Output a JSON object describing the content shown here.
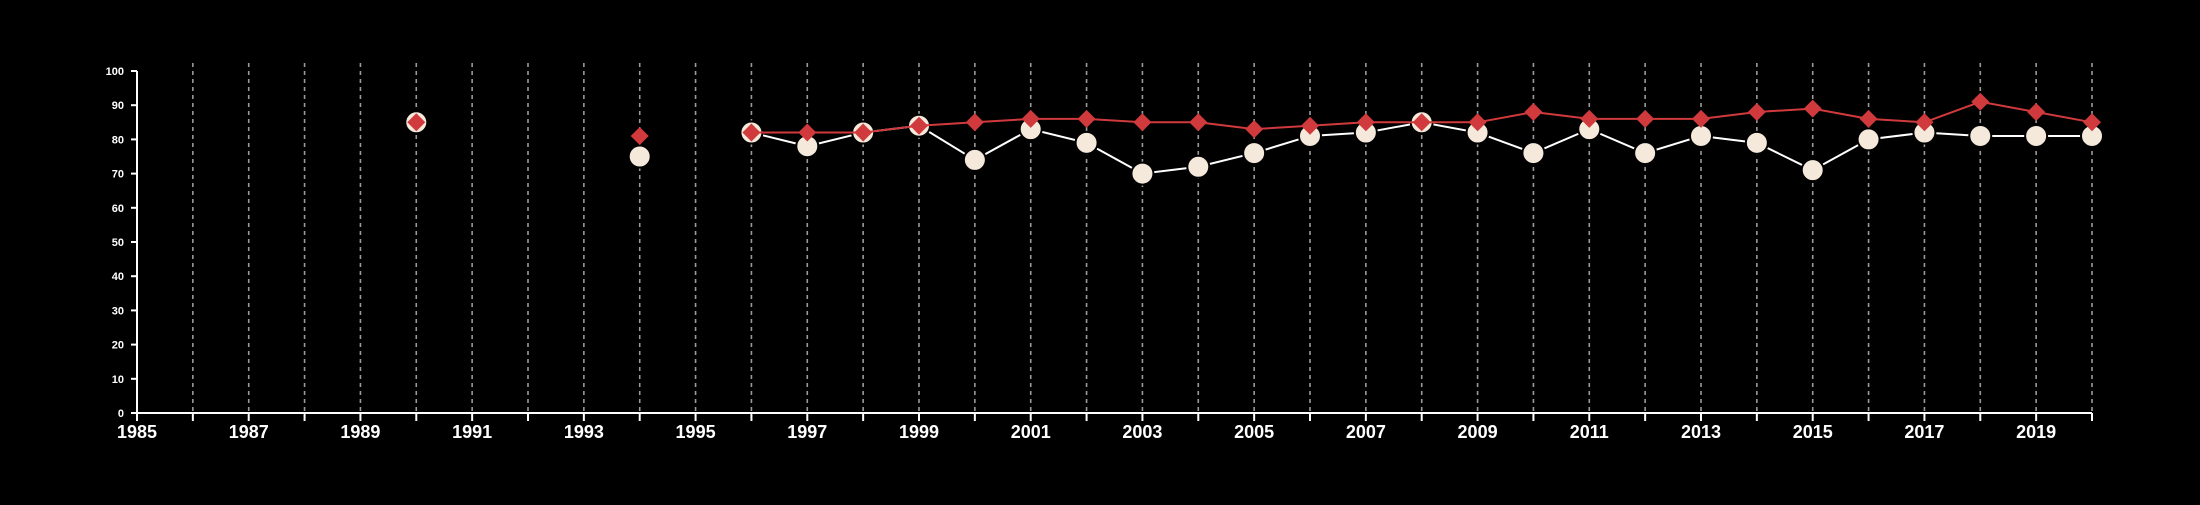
{
  "chart_data": {
    "type": "line",
    "title": "",
    "xlabel": "",
    "ylabel": "",
    "xlim": [
      1985,
      2020
    ],
    "ylim": [
      0,
      100
    ],
    "yticks": [
      0,
      10,
      20,
      30,
      40,
      50,
      60,
      70,
      80,
      90,
      100
    ],
    "xticks_labeled": [
      1985,
      1987,
      1989,
      1991,
      1993,
      1995,
      1997,
      1999,
      2001,
      2003,
      2005,
      2007,
      2009,
      2011,
      2013,
      2015,
      2017,
      2019
    ],
    "x_minor_ticks": [
      1986,
      1988,
      1990,
      1992,
      1994,
      1996,
      1998,
      2000,
      2002,
      2004,
      2006,
      2008,
      2010,
      2012,
      2014,
      2016,
      2018,
      2020
    ],
    "vertical_gridlines": "dashed, every year",
    "legend": "none",
    "series": [
      {
        "marker": "circle",
        "color": "#f5e9dc",
        "line_color": "#ffffff",
        "points": [
          [
            1990,
            85
          ],
          [
            1994,
            75
          ],
          [
            1996,
            82
          ],
          [
            1997,
            78
          ],
          [
            1998,
            82
          ],
          [
            1999,
            84
          ],
          [
            2000,
            74
          ],
          [
            2001,
            83
          ],
          [
            2002,
            79
          ],
          [
            2003,
            70
          ],
          [
            2004,
            72
          ],
          [
            2005,
            76
          ],
          [
            2006,
            81
          ],
          [
            2007,
            82
          ],
          [
            2008,
            85
          ],
          [
            2009,
            82
          ],
          [
            2010,
            76
          ],
          [
            2011,
            83
          ],
          [
            2012,
            76
          ],
          [
            2013,
            81
          ],
          [
            2014,
            79
          ],
          [
            2015,
            71
          ],
          [
            2016,
            80
          ],
          [
            2017,
            82
          ],
          [
            2018,
            81
          ],
          [
            2019,
            81
          ],
          [
            2020,
            81
          ]
        ]
      },
      {
        "marker": "diamond",
        "color": "#d13a3c",
        "line_color": "#d13a3c",
        "points": [
          [
            1990,
            85
          ],
          [
            1994,
            81
          ],
          [
            1996,
            82
          ],
          [
            1997,
            82
          ],
          [
            1998,
            82
          ],
          [
            1999,
            84
          ],
          [
            2000,
            85
          ],
          [
            2001,
            86
          ],
          [
            2002,
            86
          ],
          [
            2003,
            85
          ],
          [
            2004,
            85
          ],
          [
            2005,
            83
          ],
          [
            2006,
            84
          ],
          [
            2007,
            85
          ],
          [
            2008,
            85
          ],
          [
            2009,
            85
          ],
          [
            2010,
            88
          ],
          [
            2011,
            86
          ],
          [
            2012,
            86
          ],
          [
            2013,
            86
          ],
          [
            2014,
            88
          ],
          [
            2015,
            89
          ],
          [
            2016,
            86
          ],
          [
            2017,
            85
          ],
          [
            2018,
            91
          ],
          [
            2019,
            88
          ],
          [
            2020,
            85
          ]
        ]
      }
    ]
  },
  "colors": {
    "background": "#000000",
    "axis": "#ffffff",
    "grid": "#9a9a9a"
  }
}
